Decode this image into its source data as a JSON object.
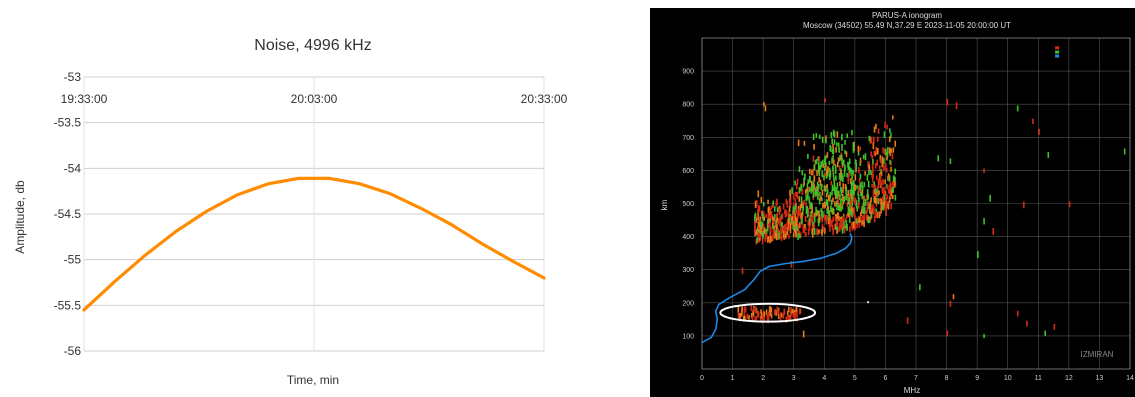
{
  "chart_data": [
    {
      "type": "line",
      "title": "Noise, 4996 kHz",
      "xlabel": "Time, min",
      "ylabel": "Amplitude, db",
      "x_tick_labels": [
        "19:33:00",
        "20:03:00",
        "20:33:00"
      ],
      "xlim": [
        0,
        60
      ],
      "ylim": [
        -56,
        -53
      ],
      "y_ticks": [
        -53,
        -53.5,
        -54,
        -54.5,
        -55,
        -55.5,
        -56
      ],
      "y_tick_labels": [
        "-53",
        "-53.5",
        "-54",
        "-54.5",
        "-55",
        "-55.5",
        "-56"
      ],
      "grid": true,
      "color": "#ff8c00",
      "series": [
        {
          "x": [
            0,
            4,
            8,
            12,
            16,
            20,
            24,
            28,
            30,
            32,
            36,
            40,
            44,
            48,
            52,
            56,
            60
          ],
          "values": [
            -55.55,
            -55.24,
            -54.95,
            -54.69,
            -54.47,
            -54.29,
            -54.17,
            -54.11,
            -54.11,
            -54.11,
            -54.17,
            -54.28,
            -54.44,
            -54.62,
            -54.83,
            -55.02,
            -55.2
          ]
        }
      ]
    },
    {
      "type": "scatter",
      "title": "PARUS-A ionogram",
      "subtitle": "Moscow (34502) 55.49 N,37.29 E   2023-11-05 20:00:00 UT",
      "xlabel": "MHz",
      "ylabel": "km",
      "xlim": [
        0,
        14
      ],
      "ylim": [
        0,
        1000
      ],
      "x_tick_labels": [
        "0",
        "1",
        "2",
        "3",
        "4",
        "5",
        "6",
        "7",
        "8",
        "9",
        "10",
        "11",
        "12",
        "13",
        "14"
      ],
      "y_tick_labels": [
        "100",
        "200",
        "300",
        "400",
        "500",
        "600",
        "700",
        "800",
        "900"
      ],
      "watermark": "IZMIRAN",
      "background": "#000000",
      "grid": true,
      "colors": {
        "red": "#d42a14",
        "orange": "#e87a1a",
        "green": "#3fbf2a",
        "blue_curve": "#1e88e5",
        "ellipse": "#ffffff"
      },
      "profile_curve": {
        "x": [
          0,
          0.3,
          0.45,
          0.5,
          0.45,
          0.55,
          0.9,
          1.4,
          1.7,
          1.9,
          2.2,
          2.7,
          3.3,
          3.9,
          4.4,
          4.7,
          4.85,
          4.9,
          4.85
        ],
        "values": [
          80,
          95,
          120,
          150,
          175,
          195,
          215,
          240,
          270,
          295,
          310,
          318,
          325,
          335,
          350,
          365,
          380,
          395,
          410
        ]
      },
      "ellipse_region": {
        "x_center": 2.15,
        "y_center": 170,
        "x_radius": 1.55,
        "y_radius": 27
      }
    }
  ]
}
